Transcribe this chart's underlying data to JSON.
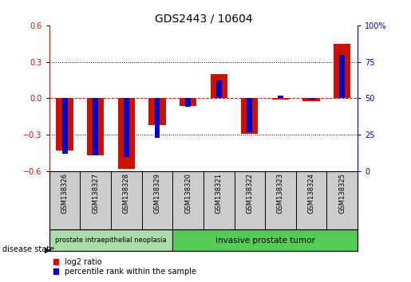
{
  "title": "GDS2443 / 10604",
  "samples": [
    "GSM138326",
    "GSM138327",
    "GSM138328",
    "GSM138329",
    "GSM138320",
    "GSM138321",
    "GSM138322",
    "GSM138323",
    "GSM138324",
    "GSM138325"
  ],
  "log2_ratio": [
    -0.43,
    -0.47,
    -0.58,
    -0.22,
    -0.06,
    0.2,
    -0.29,
    -0.01,
    -0.02,
    0.45
  ],
  "percentile_rank": [
    12,
    11,
    10,
    23,
    44,
    62,
    27,
    52,
    49,
    80
  ],
  "disease_groups": [
    {
      "label": "prostate intraepithelial neoplasia",
      "start": 0,
      "end": 4
    },
    {
      "label": "invasive prostate tumor",
      "start": 4,
      "end": 10
    }
  ],
  "ylim_left": [
    -0.6,
    0.6
  ],
  "ylim_right": [
    0,
    100
  ],
  "yticks_left": [
    -0.6,
    -0.3,
    0.0,
    0.3,
    0.6
  ],
  "yticks_right": [
    0,
    25,
    50,
    75,
    100
  ],
  "ytick_labels_right": [
    "0",
    "25",
    "50",
    "75",
    "100%"
  ],
  "red_color": "#CC1100",
  "blue_color": "#0000CC",
  "bg_color": "#FFFFFF",
  "left_label_color": "#CC1100",
  "right_label_color": "#0000CC",
  "legend_items": [
    "log2 ratio",
    "percentile rank within the sample"
  ],
  "disease_state_label": "disease state",
  "group1_color": "#aaddaa",
  "group2_color": "#55cc55",
  "red_bar_width": 0.55,
  "blue_bar_width": 0.18
}
